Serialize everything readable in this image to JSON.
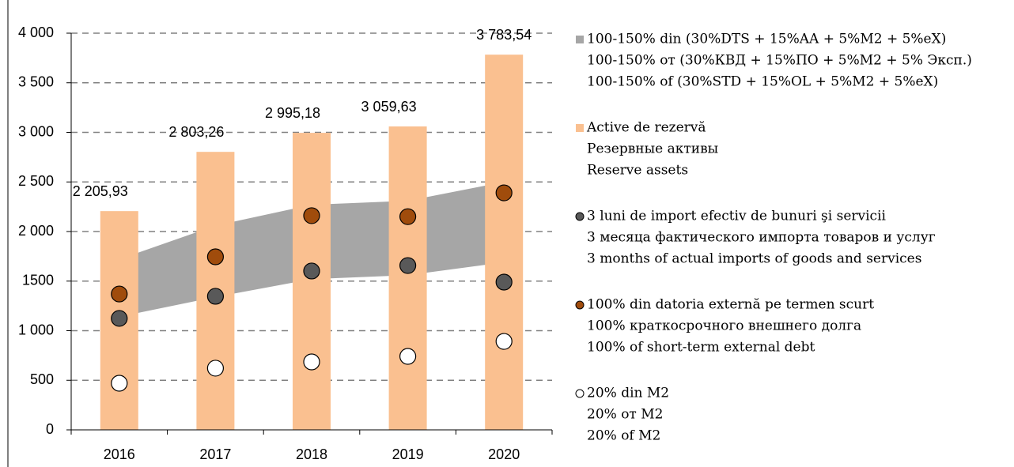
{
  "chart_data": {
    "type": "bar",
    "categories": [
      "2016",
      "2017",
      "2018",
      "2019",
      "2020"
    ],
    "ylim": [
      0,
      4000
    ],
    "yticks": [
      0,
      500,
      {
        "value": 1000,
        "label": "1 000"
      },
      {
        "value": 1500,
        "label": "1500"
      },
      {
        "value": 2000,
        "label": "2 000"
      },
      {
        "value": 2500,
        "label": "2 500"
      },
      {
        "value": 3000,
        "label": "3 000"
      },
      {
        "value": 3500,
        "label": "3 500"
      },
      {
        "value": 4000,
        "label": "4 000"
      }
    ],
    "grid": true,
    "series": [
      {
        "type": "band",
        "name": [
          "100-150% din (30%DTS + 15%AA + 5%M2 + 5%eX)",
          "100-150% от (30%КВД  + 15%ПО + 5%М2 + 5% Эксп.)",
          "100-150% of (30%STD + 15%OL + 5%M2 + 5%eX)"
        ],
        "color": "#a6a6a6",
        "low": [
          1140,
          1340,
          1520,
          1560,
          1690
        ],
        "values": [
          1720,
          2060,
          2270,
          2310,
          2500
        ]
      },
      {
        "type": "bar",
        "name": [
          "Active de rezervă",
          "Резервные активы",
          "Reserve assets"
        ],
        "color": "#fac090",
        "values": [
          2205.93,
          2803.26,
          2995.18,
          3059.63,
          3783.54
        ],
        "value_labels": [
          "2 205,93",
          "2 803,26",
          "2 995,18",
          "3 059,63",
          "3 783,54"
        ]
      },
      {
        "type": "dot",
        "name": [
          "3 luni de import efectiv de bunuri şi servicii",
          "3 месяца фактического импорта товаров и услуг",
          "3 months of actual imports of goods and services"
        ],
        "color": "#595959",
        "values": [
          1124,
          1347,
          1602,
          1657,
          1490
        ]
      },
      {
        "type": "dot",
        "name": [
          "100% din datoria externă pe termen scurt",
          "100% краткосрочного внешнего долга",
          "100% of short-term external debt"
        ],
        "color": "#a04c0c",
        "values": [
          1370,
          1745,
          2160,
          2150,
          2390
        ]
      },
      {
        "type": "dot",
        "name": [
          "20% din M2",
          "20% от М2",
          "20% of M2"
        ],
        "color": "#ffffff",
        "values": [
          470,
          622,
          685,
          741,
          892
        ]
      }
    ]
  }
}
